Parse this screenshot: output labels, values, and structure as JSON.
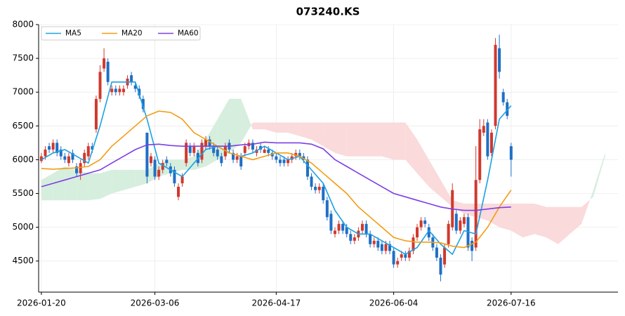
{
  "chart_data": {
    "type": "candlestick",
    "title": "073240.KS",
    "xlim": [
      -0.7,
      147.3
    ],
    "xticks": [
      {
        "value": 0,
        "label": "2026-01-20"
      },
      {
        "value": 29,
        "label": "2026-03-06"
      },
      {
        "value": 60,
        "label": "2026-04-17"
      },
      {
        "value": 90,
        "label": "2026-06-04"
      },
      {
        "value": 120,
        "label": "2026-07-16"
      }
    ],
    "ylim": [
      4040,
      8000
    ],
    "yticks": [
      4500,
      5000,
      5500,
      6000,
      6500,
      7000,
      7500,
      8000
    ],
    "grid": true,
    "legend": "upper left",
    "up_color": "#d0392e",
    "down_color": "#1f6fc5",
    "open": [
      5980,
      6050,
      6200,
      6150,
      6250,
      6150,
      6050,
      5950,
      6100,
      5900,
      5800,
      5950,
      6050,
      6200,
      6450,
      6900,
      7350,
      7450,
      7000,
      7050,
      7000,
      7000,
      7100,
      7250,
      7100,
      7050,
      6900,
      6400,
      5950,
      6000,
      5750,
      5850,
      6000,
      5900,
      5850,
      5450,
      5650,
      5950,
      6200,
      6100,
      6100,
      6000,
      6200,
      6300,
      6200,
      6150,
      6050,
      6050,
      6250,
      6100,
      6000,
      6050,
      6100,
      6200,
      6250,
      6100,
      6200,
      6100,
      6150,
      6100,
      6050,
      6000,
      6000,
      5950,
      6000,
      6050,
      6100,
      6050,
      6000,
      5750,
      5600,
      5550,
      5600,
      5400,
      5200,
      4900,
      4950,
      5050,
      5000,
      4900,
      4800,
      4850,
      4950,
      5050,
      4900,
      4750,
      4800,
      4750,
      4650,
      4750,
      4650,
      4450,
      4550,
      4600,
      4550,
      4650,
      4850,
      5000,
      5100,
      5000,
      4850,
      4700,
      4550,
      4450,
      4750,
      5000,
      5200,
      4950,
      5050,
      5150,
      4800,
      4700,
      5700,
      6400,
      6550,
      6100,
      6500,
      7650,
      7000,
      6850,
      6200
    ],
    "high": [
      6100,
      6200,
      6250,
      6300,
      6300,
      6200,
      6100,
      6100,
      6150,
      5950,
      6000,
      6150,
      6250,
      6250,
      6950,
      7400,
      7650,
      7500,
      7100,
      7100,
      7100,
      7100,
      7250,
      7300,
      7150,
      7100,
      6950,
      6400,
      6100,
      6050,
      5900,
      6000,
      6050,
      5950,
      5900,
      5650,
      5800,
      6300,
      6250,
      6250,
      6150,
      6300,
      6350,
      6350,
      6250,
      6200,
      6100,
      6250,
      6300,
      6150,
      6100,
      6100,
      6250,
      6300,
      6300,
      6200,
      6250,
      6200,
      6200,
      6150,
      6100,
      6050,
      6050,
      6050,
      6100,
      6150,
      6150,
      6100,
      6050,
      5800,
      5650,
      5650,
      5650,
      5450,
      5250,
      5000,
      5100,
      5100,
      5050,
      4950,
      4900,
      5000,
      5100,
      5100,
      4950,
      4850,
      4850,
      4800,
      4800,
      4800,
      4700,
      4550,
      4650,
      4650,
      4700,
      4900,
      5050,
      5150,
      5150,
      5050,
      4900,
      4750,
      4600,
      4750,
      5100,
      5650,
      5250,
      5150,
      5200,
      5200,
      4850,
      6200,
      6600,
      6600,
      6600,
      6450,
      7800,
      7850,
      7050,
      6900,
      6250
    ],
    "low": [
      5950,
      6000,
      6100,
      6100,
      6050,
      6000,
      5950,
      5900,
      5950,
      5750,
      5700,
      5900,
      6000,
      6100,
      6400,
      6850,
      7300,
      7100,
      6950,
      6950,
      6950,
      6950,
      7050,
      7100,
      7000,
      6900,
      6700,
      5650,
      5900,
      5700,
      5700,
      5800,
      5900,
      5750,
      5600,
      5400,
      5600,
      5900,
      6050,
      6050,
      5900,
      5950,
      6150,
      6150,
      6050,
      6000,
      5900,
      6000,
      6100,
      5950,
      5950,
      5850,
      6050,
      6150,
      6100,
      6050,
      6100,
      6100,
      6050,
      6000,
      5950,
      5900,
      5900,
      5900,
      5950,
      6000,
      6000,
      5950,
      5700,
      5550,
      5500,
      5500,
      5350,
      5100,
      4900,
      4850,
      4900,
      4900,
      4850,
      4750,
      4750,
      4800,
      4900,
      4850,
      4700,
      4700,
      4650,
      4600,
      4600,
      4600,
      4400,
      4400,
      4500,
      4500,
      4500,
      4600,
      4800,
      4950,
      5000,
      4800,
      4650,
      4500,
      4200,
      4400,
      4700,
      4950,
      4900,
      4900,
      5000,
      4650,
      4500,
      4650,
      5650,
      6350,
      6000,
      6050,
      6450,
      7200,
      6800,
      6600,
      5750
    ],
    "close": [
      6050,
      6150,
      6150,
      6250,
      6100,
      6050,
      6000,
      6050,
      6000,
      5800,
      5950,
      6100,
      6200,
      6150,
      6900,
      7300,
      7500,
      7150,
      7050,
      7000,
      7050,
      7050,
      7200,
      7150,
      7050,
      6950,
      6750,
      5750,
      6050,
      5750,
      5850,
      5950,
      5950,
      5800,
      5650,
      5600,
      5750,
      6250,
      6100,
      6200,
      5950,
      6250,
      6300,
      6200,
      6100,
      6050,
      5950,
      6200,
      6150,
      6000,
      6050,
      5900,
      6200,
      6250,
      6150,
      6150,
      6150,
      6150,
      6100,
      6050,
      6000,
      5950,
      5950,
      6000,
      6050,
      6100,
      6050,
      6000,
      5750,
      5600,
      5550,
      5600,
      5400,
      5150,
      4950,
      4950,
      5050,
      4950,
      4900,
      4800,
      4850,
      4950,
      5050,
      4900,
      4750,
      4800,
      4700,
      4650,
      4750,
      4650,
      4450,
      4500,
      4600,
      4550,
      4650,
      4850,
      5000,
      5100,
      5050,
      4850,
      4700,
      4550,
      4300,
      4700,
      5050,
      5550,
      4950,
      5100,
      5150,
      4700,
      4650,
      5700,
      6450,
      6500,
      6050,
      6400,
      7700,
      7300,
      6850,
      6650,
      6000
    ],
    "series": [
      {
        "name": "MA5",
        "color": "#1ba1e2",
        "x": [
          0,
          3,
          6,
          9,
          12,
          15,
          18,
          21,
          24,
          27,
          30,
          33,
          36,
          39,
          42,
          45,
          48,
          51,
          54,
          57,
          60,
          63,
          66,
          69,
          72,
          75,
          78,
          81,
          84,
          87,
          90,
          93,
          96,
          99,
          102,
          105,
          108,
          111,
          114,
          117,
          120
        ],
        "values": [
          6000,
          6100,
          6150,
          6050,
          5950,
          6500,
          7150,
          7150,
          7150,
          6600,
          5950,
          5850,
          5750,
          5950,
          6150,
          6200,
          6100,
          6050,
          6100,
          6200,
          6100,
          6000,
          6050,
          5850,
          5650,
          5250,
          5000,
          4900,
          4900,
          4800,
          4700,
          4600,
          4700,
          4950,
          4750,
          4600,
          4950,
          4900,
          5700,
          6600,
          6800
        ]
      },
      {
        "name": "MA20",
        "color": "#f39c12",
        "x": [
          0,
          3,
          6,
          9,
          12,
          15,
          18,
          21,
          24,
          27,
          30,
          33,
          36,
          39,
          42,
          45,
          48,
          51,
          54,
          57,
          60,
          63,
          66,
          69,
          72,
          75,
          78,
          81,
          84,
          87,
          90,
          93,
          96,
          99,
          102,
          105,
          108,
          111,
          114,
          117,
          120
        ],
        "values": [
          5870,
          5860,
          5870,
          5880,
          5900,
          6000,
          6200,
          6350,
          6500,
          6650,
          6720,
          6700,
          6600,
          6400,
          6300,
          6200,
          6100,
          6050,
          6000,
          6050,
          6100,
          6100,
          6050,
          5950,
          5800,
          5650,
          5500,
          5300,
          5150,
          5000,
          4850,
          4800,
          4780,
          4780,
          4770,
          4720,
          4700,
          4780,
          5000,
          5300,
          5550
        ]
      },
      {
        "name": "MA60",
        "color": "#7b3fe4",
        "x": [
          0,
          3,
          6,
          9,
          12,
          15,
          18,
          21,
          24,
          27,
          30,
          33,
          36,
          39,
          42,
          45,
          48,
          51,
          54,
          57,
          60,
          63,
          66,
          69,
          72,
          75,
          78,
          81,
          84,
          87,
          90,
          93,
          96,
          99,
          102,
          105,
          108,
          111,
          114,
          117,
          120
        ],
        "values": [
          5600,
          5650,
          5700,
          5750,
          5800,
          5850,
          5950,
          6050,
          6150,
          6220,
          6230,
          6210,
          6200,
          6200,
          6200,
          6200,
          6200,
          6220,
          6230,
          6260,
          6250,
          6250,
          6250,
          6230,
          6160,
          6000,
          5900,
          5800,
          5700,
          5600,
          5500,
          5450,
          5400,
          5350,
          5300,
          5270,
          5250,
          5250,
          5270,
          5290,
          5300
        ]
      }
    ],
    "cloud": {
      "up_color": "#d6eedd",
      "down_color": "#fadadb",
      "x": [
        0,
        3,
        6,
        9,
        12,
        15,
        18,
        21,
        24,
        27,
        30,
        33,
        36,
        39,
        42,
        45,
        48,
        51,
        54,
        57,
        60,
        63,
        66,
        69,
        72,
        75,
        78,
        81,
        84,
        87,
        90,
        93,
        96,
        99,
        102,
        105,
        108,
        111,
        114,
        117,
        120,
        123,
        126,
        129,
        132,
        135,
        138,
        141,
        144
      ],
      "span_a": [
        5700,
        5800,
        5900,
        5850,
        5800,
        5800,
        5850,
        5850,
        5850,
        5850,
        5950,
        6000,
        6000,
        6050,
        6300,
        6600,
        6900,
        6900,
        6450,
        6450,
        6400,
        6400,
        6350,
        6300,
        6200,
        6100,
        6050,
        6050,
        6050,
        6050,
        6000,
        6000,
        5800,
        5600,
        5450,
        5300,
        5200,
        5150,
        5100,
        5000,
        4950,
        4850,
        4900,
        4850,
        4750,
        4900,
        5050,
        5550,
        6100
      ],
      "span_b": [
        5400,
        5400,
        5400,
        5400,
        5400,
        5420,
        5500,
        5550,
        5600,
        5650,
        5750,
        5800,
        5850,
        5850,
        5900,
        6000,
        6100,
        6250,
        6550,
        6550,
        6550,
        6550,
        6550,
        6550,
        6550,
        6550,
        6550,
        6550,
        6550,
        6550,
        6550,
        6550,
        6300,
        6000,
        5700,
        5400,
        5350,
        5350,
        5350,
        5350,
        5350,
        5350,
        5350,
        5300,
        5300,
        5300,
        5300,
        5450,
        6050
      ]
    }
  }
}
